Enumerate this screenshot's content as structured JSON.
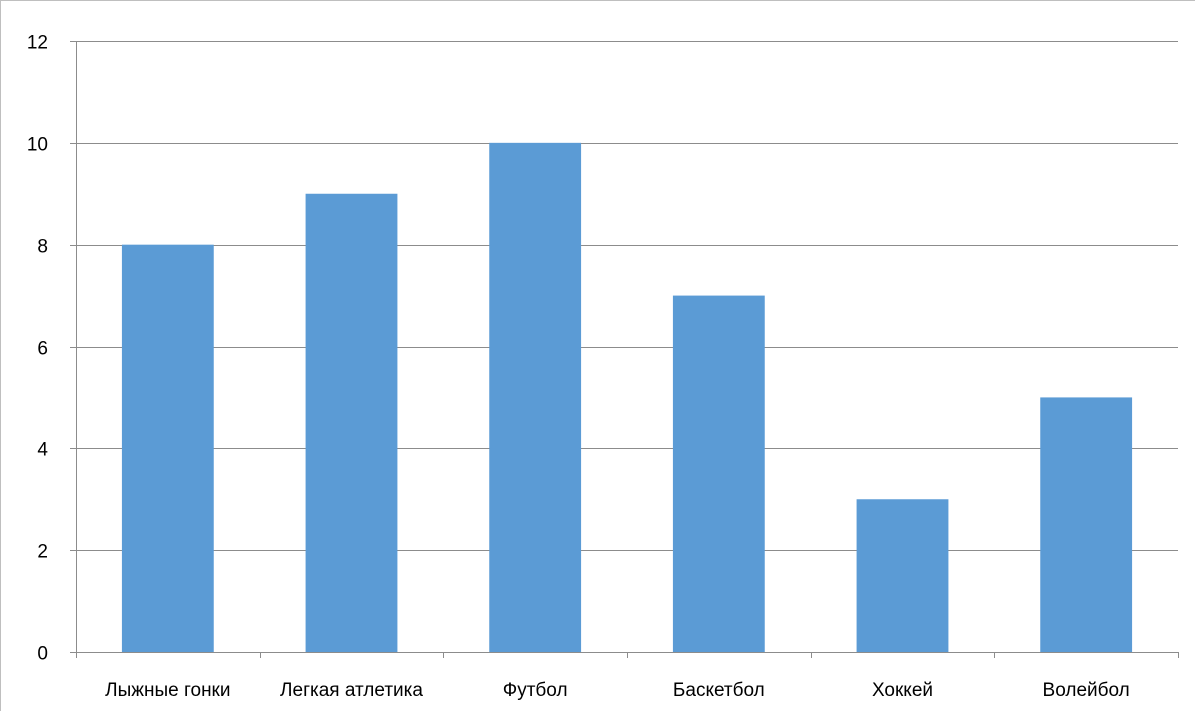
{
  "chart_data": {
    "type": "bar",
    "title": "",
    "xlabel": "",
    "ylabel": "",
    "categories": [
      "Лыжные гонки",
      "Легкая атлетика",
      "Футбол",
      "Баскетбол",
      "Хоккей",
      "Волейбол"
    ],
    "values": [
      8,
      9,
      10,
      7,
      3,
      5
    ],
    "ylim": [
      0,
      12
    ],
    "y_ticks": [
      "0",
      "2",
      "4",
      "6",
      "8",
      "10",
      "12"
    ],
    "grid": true,
    "legend": "none",
    "bar_color": "#5b9bd5",
    "grid_color": "#8c8c8c"
  }
}
